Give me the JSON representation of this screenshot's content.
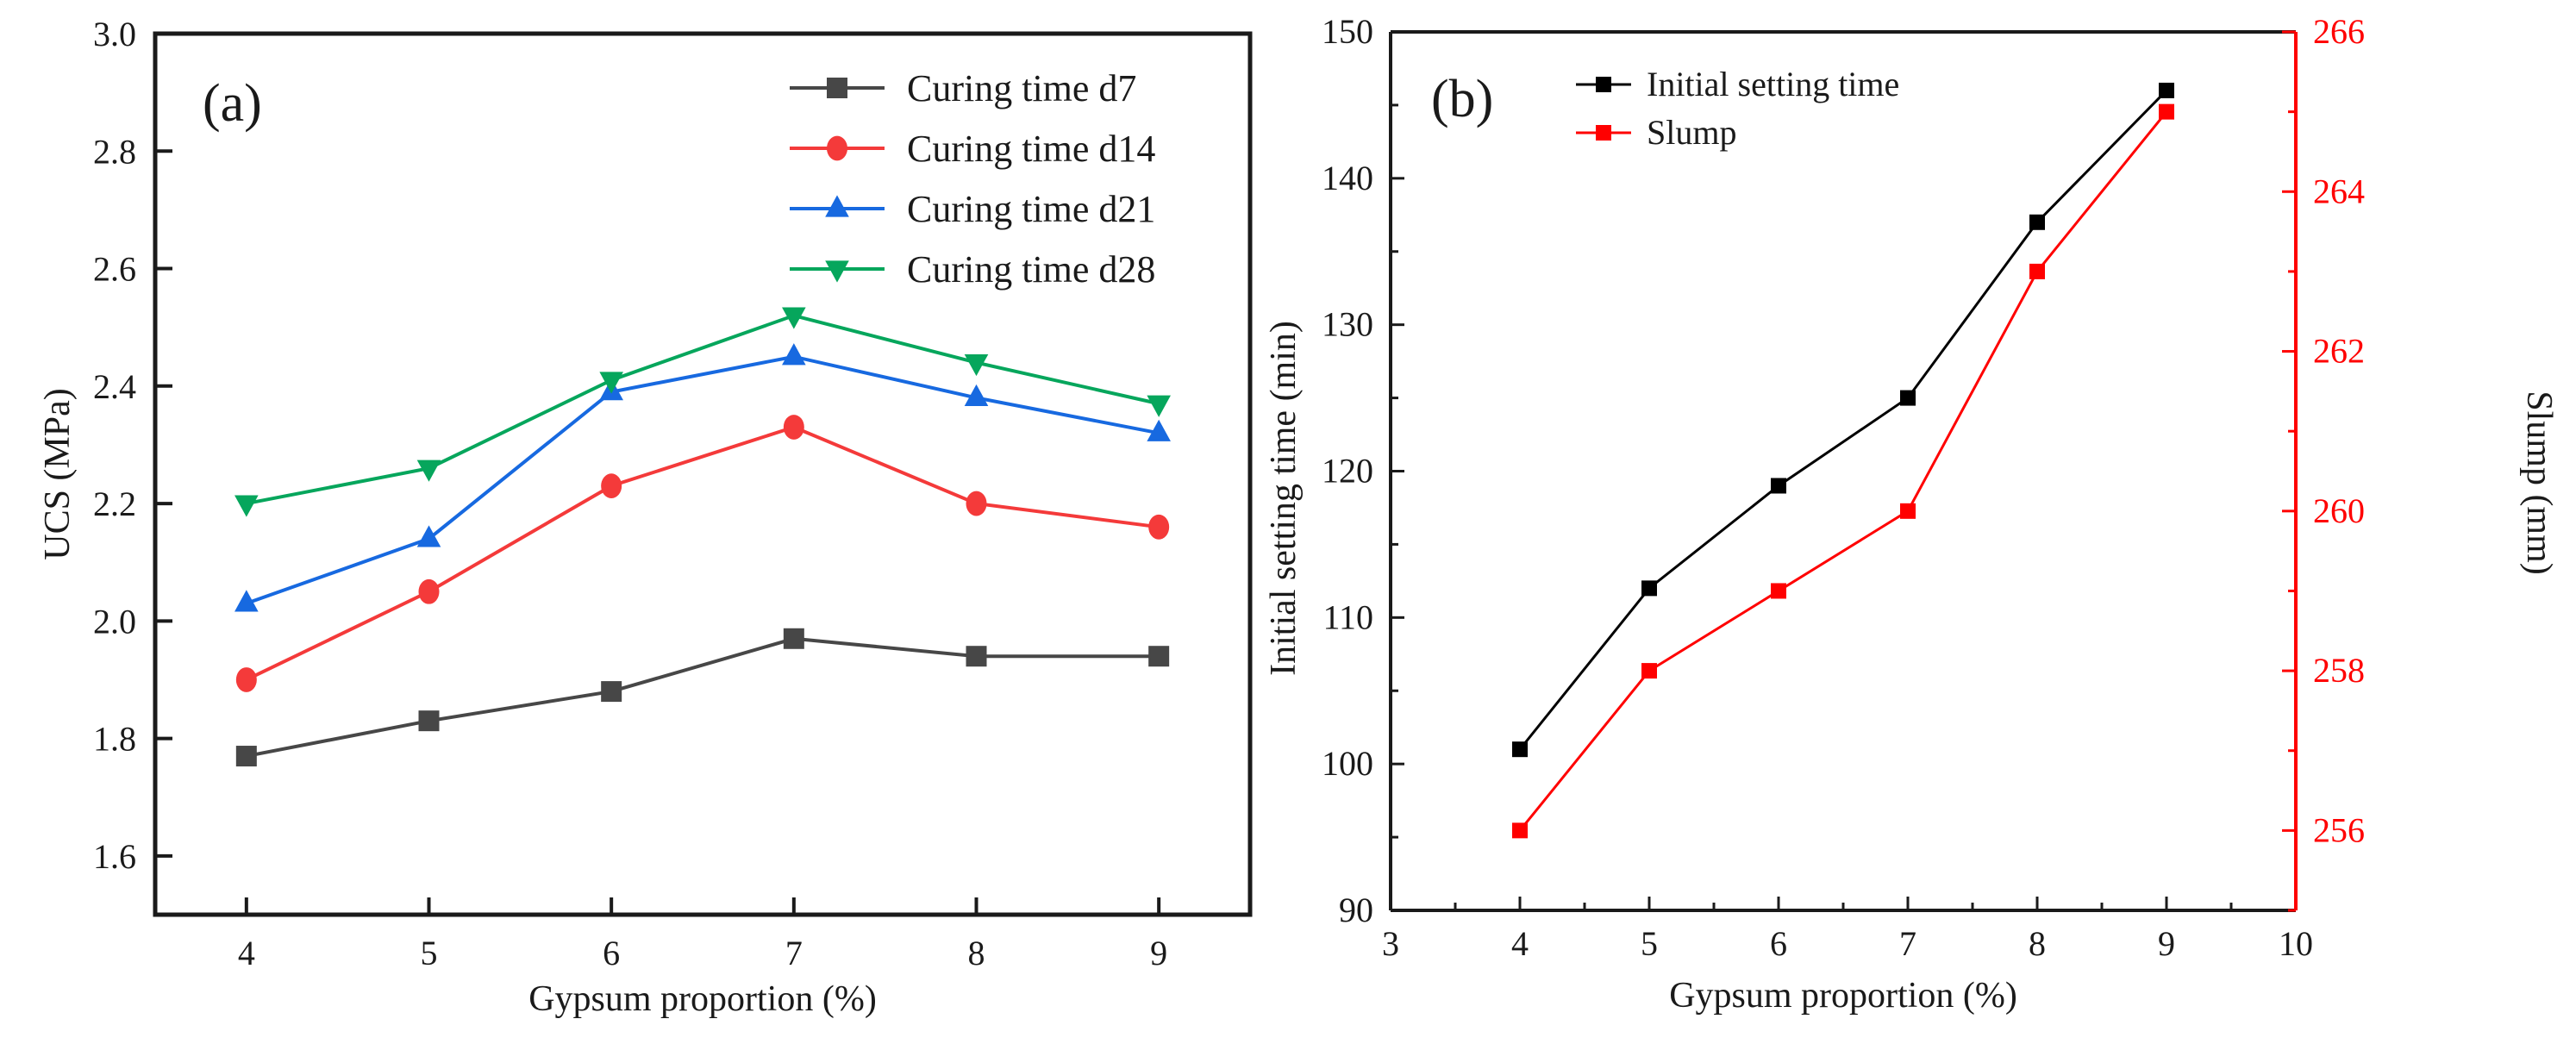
{
  "chart_data": [
    {
      "type": "line",
      "panel_label": "(a)",
      "title": "",
      "xlabel": "Gypsum proportion (%)",
      "ylabel": "UCS (MPa)",
      "xlim": [
        3.5,
        9.5
      ],
      "ylim": [
        1.5,
        3.0
      ],
      "x_ticks": [
        4,
        5,
        6,
        7,
        8,
        9
      ],
      "x_tick_labels": [
        "4",
        "5",
        "6",
        "7",
        "8",
        "9"
      ],
      "y_ticks": [
        1.6,
        1.8,
        2.0,
        2.2,
        2.4,
        2.6,
        2.8,
        3.0
      ],
      "y_tick_labels": [
        "1.6",
        "1.8",
        "2.0",
        "2.2",
        "2.4",
        "2.6",
        "2.8",
        "3.0"
      ],
      "grid": false,
      "legend_position": "top-right",
      "x": [
        4,
        5,
        6,
        7,
        8,
        9
      ],
      "series": [
        {
          "name": "Curing time d7",
          "color": "#474747",
          "marker": "square",
          "values": [
            1.77,
            1.83,
            1.88,
            1.97,
            1.94,
            1.94
          ]
        },
        {
          "name": "Curing time d14",
          "color": "#f43a3a",
          "marker": "circle",
          "values": [
            1.9,
            2.05,
            2.23,
            2.33,
            2.2,
            2.16
          ]
        },
        {
          "name": "Curing time d21",
          "color": "#1769e0",
          "marker": "triangle-up",
          "values": [
            2.03,
            2.14,
            2.39,
            2.45,
            2.38,
            2.32
          ]
        },
        {
          "name": "Curing time d28",
          "color": "#06a65c",
          "marker": "triangle-down",
          "values": [
            2.2,
            2.26,
            2.41,
            2.52,
            2.44,
            2.37
          ]
        }
      ]
    },
    {
      "type": "line",
      "panel_label": "(b)",
      "title": "",
      "xlabel": "Gypsum proportion (%)",
      "ylabel": "Initial setting time (min)",
      "y2label": "Slump (mm)",
      "xlim": [
        3,
        10
      ],
      "ylim": [
        90,
        150
      ],
      "y2lim": [
        255,
        266
      ],
      "x_ticks": [
        3,
        4,
        5,
        6,
        7,
        8,
        9,
        10
      ],
      "x_tick_labels": [
        "3",
        "4",
        "5",
        "6",
        "7",
        "8",
        "9",
        "10"
      ],
      "y_ticks": [
        90,
        100,
        110,
        120,
        130,
        140,
        150
      ],
      "y_tick_labels": [
        "90",
        "100",
        "110",
        "120",
        "130",
        "140",
        "150"
      ],
      "y2_ticks": [
        256,
        258,
        260,
        262,
        264,
        266
      ],
      "y2_tick_labels": [
        "256",
        "258",
        "260",
        "262",
        "264",
        "266"
      ],
      "y2_color": "#ff0000",
      "grid": false,
      "legend_position": "top-left",
      "x": [
        4,
        5,
        6,
        7,
        8,
        9
      ],
      "series": [
        {
          "name": "Initial setting time",
          "color": "#000000",
          "marker": "square",
          "axis": "left",
          "values": [
            101,
            112,
            119,
            125,
            137,
            146
          ]
        },
        {
          "name": "Slump",
          "color": "#ff0000",
          "marker": "square",
          "axis": "right",
          "values": [
            256,
            258,
            259,
            260,
            263,
            265
          ]
        }
      ]
    }
  ]
}
